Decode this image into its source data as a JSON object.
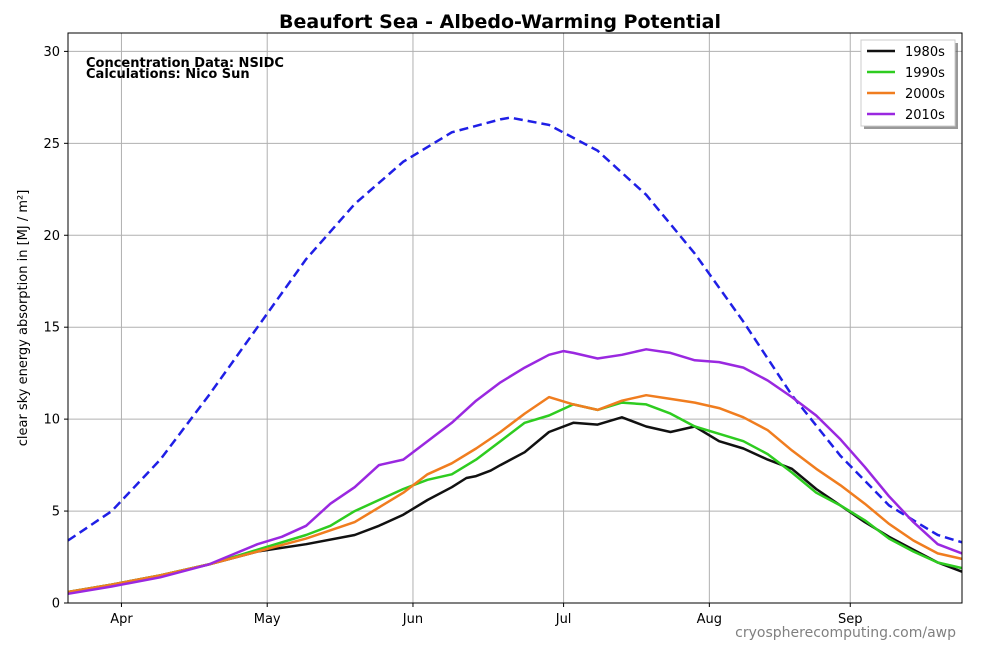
{
  "chart_data": {
    "type": "line",
    "title": "Beaufort Sea - Albedo-Warming Potential",
    "xlabel": "",
    "ylabel": "clear sky energy absorption in  [MJ / m²]",
    "ylim": [
      0,
      31
    ],
    "xlim": [
      81,
      265
    ],
    "x_unit": "day of year",
    "x_ticks": [
      {
        "label": "Apr",
        "day": 92
      },
      {
        "label": "May",
        "day": 122
      },
      {
        "label": "Jun",
        "day": 152
      },
      {
        "label": "Jul",
        "day": 183
      },
      {
        "label": "Aug",
        "day": 213
      },
      {
        "label": "Sep",
        "day": 242
      }
    ],
    "y_ticks": [
      0,
      5,
      10,
      15,
      20,
      25,
      30
    ],
    "grid": true,
    "legend_position": "top-right",
    "annotations": [
      "Concentration Data: NSIDC",
      "Calculations: Nico Sun"
    ],
    "watermark": "cryospherecomputing.com/awp",
    "reference_curve": {
      "style": "dashed",
      "color": "#1f1fe6",
      "x": [
        81,
        90,
        100,
        110,
        120,
        130,
        140,
        150,
        160,
        170,
        172,
        180,
        190,
        200,
        210,
        220,
        230,
        240,
        250,
        260,
        265
      ],
      "values": [
        3.4,
        5.0,
        7.8,
        11.3,
        15.0,
        18.7,
        21.7,
        24.0,
        25.6,
        26.3,
        26.4,
        26.0,
        24.6,
        22.2,
        19.0,
        15.3,
        11.3,
        8.0,
        5.3,
        3.7,
        3.3
      ]
    },
    "series": [
      {
        "name": "1980s",
        "color": "#111111",
        "x": [
          81,
          90,
          100,
          110,
          120,
          130,
          140,
          145,
          150,
          155,
          160,
          163,
          165,
          168,
          170,
          175,
          180,
          185,
          190,
          195,
          200,
          205,
          210,
          215,
          220,
          225,
          230,
          235,
          240,
          245,
          250,
          255,
          260,
          265
        ],
        "values": [
          0.6,
          1.0,
          1.5,
          2.1,
          2.8,
          3.2,
          3.7,
          4.2,
          4.8,
          5.6,
          6.3,
          6.8,
          6.9,
          7.2,
          7.5,
          8.2,
          9.3,
          9.8,
          9.7,
          10.1,
          9.6,
          9.3,
          9.6,
          8.8,
          8.4,
          7.8,
          7.3,
          6.2,
          5.3,
          4.4,
          3.6,
          2.9,
          2.2,
          1.7
        ]
      },
      {
        "name": "1990s",
        "color": "#2ecc20",
        "x": [
          81,
          90,
          100,
          110,
          120,
          130,
          135,
          140,
          145,
          150,
          155,
          160,
          165,
          170,
          175,
          180,
          185,
          190,
          195,
          200,
          205,
          210,
          215,
          220,
          225,
          230,
          235,
          240,
          245,
          250,
          255,
          260,
          265
        ],
        "values": [
          0.6,
          1.0,
          1.5,
          2.1,
          2.9,
          3.7,
          4.2,
          5.0,
          5.6,
          6.2,
          6.7,
          7.0,
          7.8,
          8.8,
          9.8,
          10.2,
          10.8,
          10.5,
          10.9,
          10.8,
          10.3,
          9.6,
          9.2,
          8.8,
          8.1,
          7.1,
          6.0,
          5.3,
          4.5,
          3.5,
          2.8,
          2.2,
          1.9
        ]
      },
      {
        "name": "2000s",
        "color": "#f07d1f",
        "x": [
          81,
          90,
          100,
          110,
          120,
          130,
          140,
          145,
          150,
          155,
          160,
          165,
          170,
          175,
          180,
          185,
          190,
          195,
          200,
          205,
          210,
          215,
          220,
          225,
          230,
          235,
          240,
          245,
          250,
          255,
          260,
          265
        ],
        "values": [
          0.6,
          1.0,
          1.5,
          2.1,
          2.8,
          3.5,
          4.4,
          5.2,
          6.0,
          7.0,
          7.6,
          8.4,
          9.3,
          10.3,
          11.2,
          10.8,
          10.5,
          11.0,
          11.3,
          11.1,
          10.9,
          10.6,
          10.1,
          9.4,
          8.3,
          7.3,
          6.4,
          5.4,
          4.3,
          3.4,
          2.7,
          2.4
        ]
      },
      {
        "name": "2010s",
        "color": "#9a28e0",
        "x": [
          81,
          90,
          100,
          110,
          120,
          125,
          130,
          135,
          140,
          145,
          150,
          155,
          160,
          165,
          170,
          175,
          180,
          183,
          185,
          190,
          195,
          200,
          205,
          210,
          215,
          220,
          225,
          230,
          235,
          240,
          245,
          250,
          255,
          260,
          265
        ],
        "values": [
          0.5,
          0.9,
          1.4,
          2.1,
          3.2,
          3.6,
          4.2,
          5.4,
          6.3,
          7.5,
          7.8,
          8.8,
          9.8,
          11.0,
          12.0,
          12.8,
          13.5,
          13.7,
          13.6,
          13.3,
          13.5,
          13.8,
          13.6,
          13.2,
          13.1,
          12.8,
          12.1,
          11.2,
          10.2,
          8.9,
          7.4,
          5.8,
          4.4,
          3.2,
          2.7
        ]
      }
    ]
  }
}
